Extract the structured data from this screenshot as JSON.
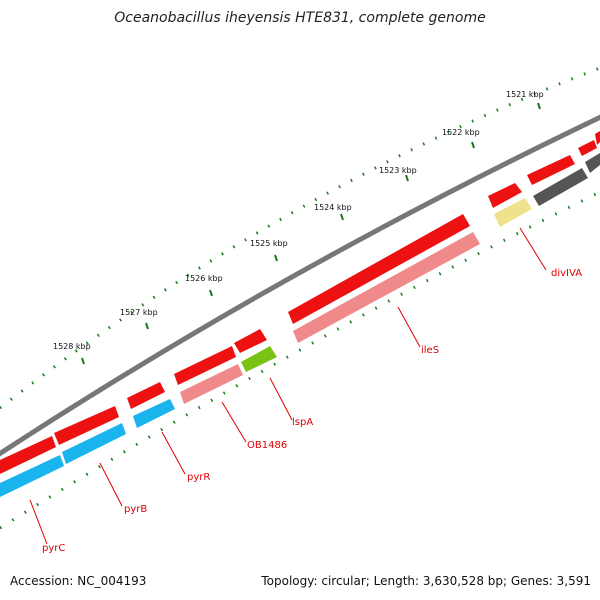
{
  "title": "Oceanobacillus iheyensis HTE831, complete genome",
  "footer": {
    "accession": "Accession: NC_004193",
    "summary": "Topology: circular; Length: 3,630,528 bp; Genes: 3,591"
  },
  "ticks": [
    "1521 kbp",
    "1522 kbp",
    "1523 kbp",
    "1524 kbp",
    "1525 kbp",
    "1526 kbp",
    "1527 kbp",
    "1528 kbp"
  ],
  "genes": [
    "divIVA",
    "ileS",
    "lspA",
    "OB1486",
    "pyrR",
    "pyrB",
    "pyrC"
  ],
  "colors": {
    "forward_gene": "#ee1111",
    "reverse_gene": "#f08a8a",
    "cyan_gene": "#19b4ee",
    "green_gene": "#7ac216",
    "yellow_gene": "#eee38c",
    "dark_gene": "#555555",
    "backbone": "#777777",
    "ticks": "#1c7a1c",
    "label": "#e00000"
  }
}
